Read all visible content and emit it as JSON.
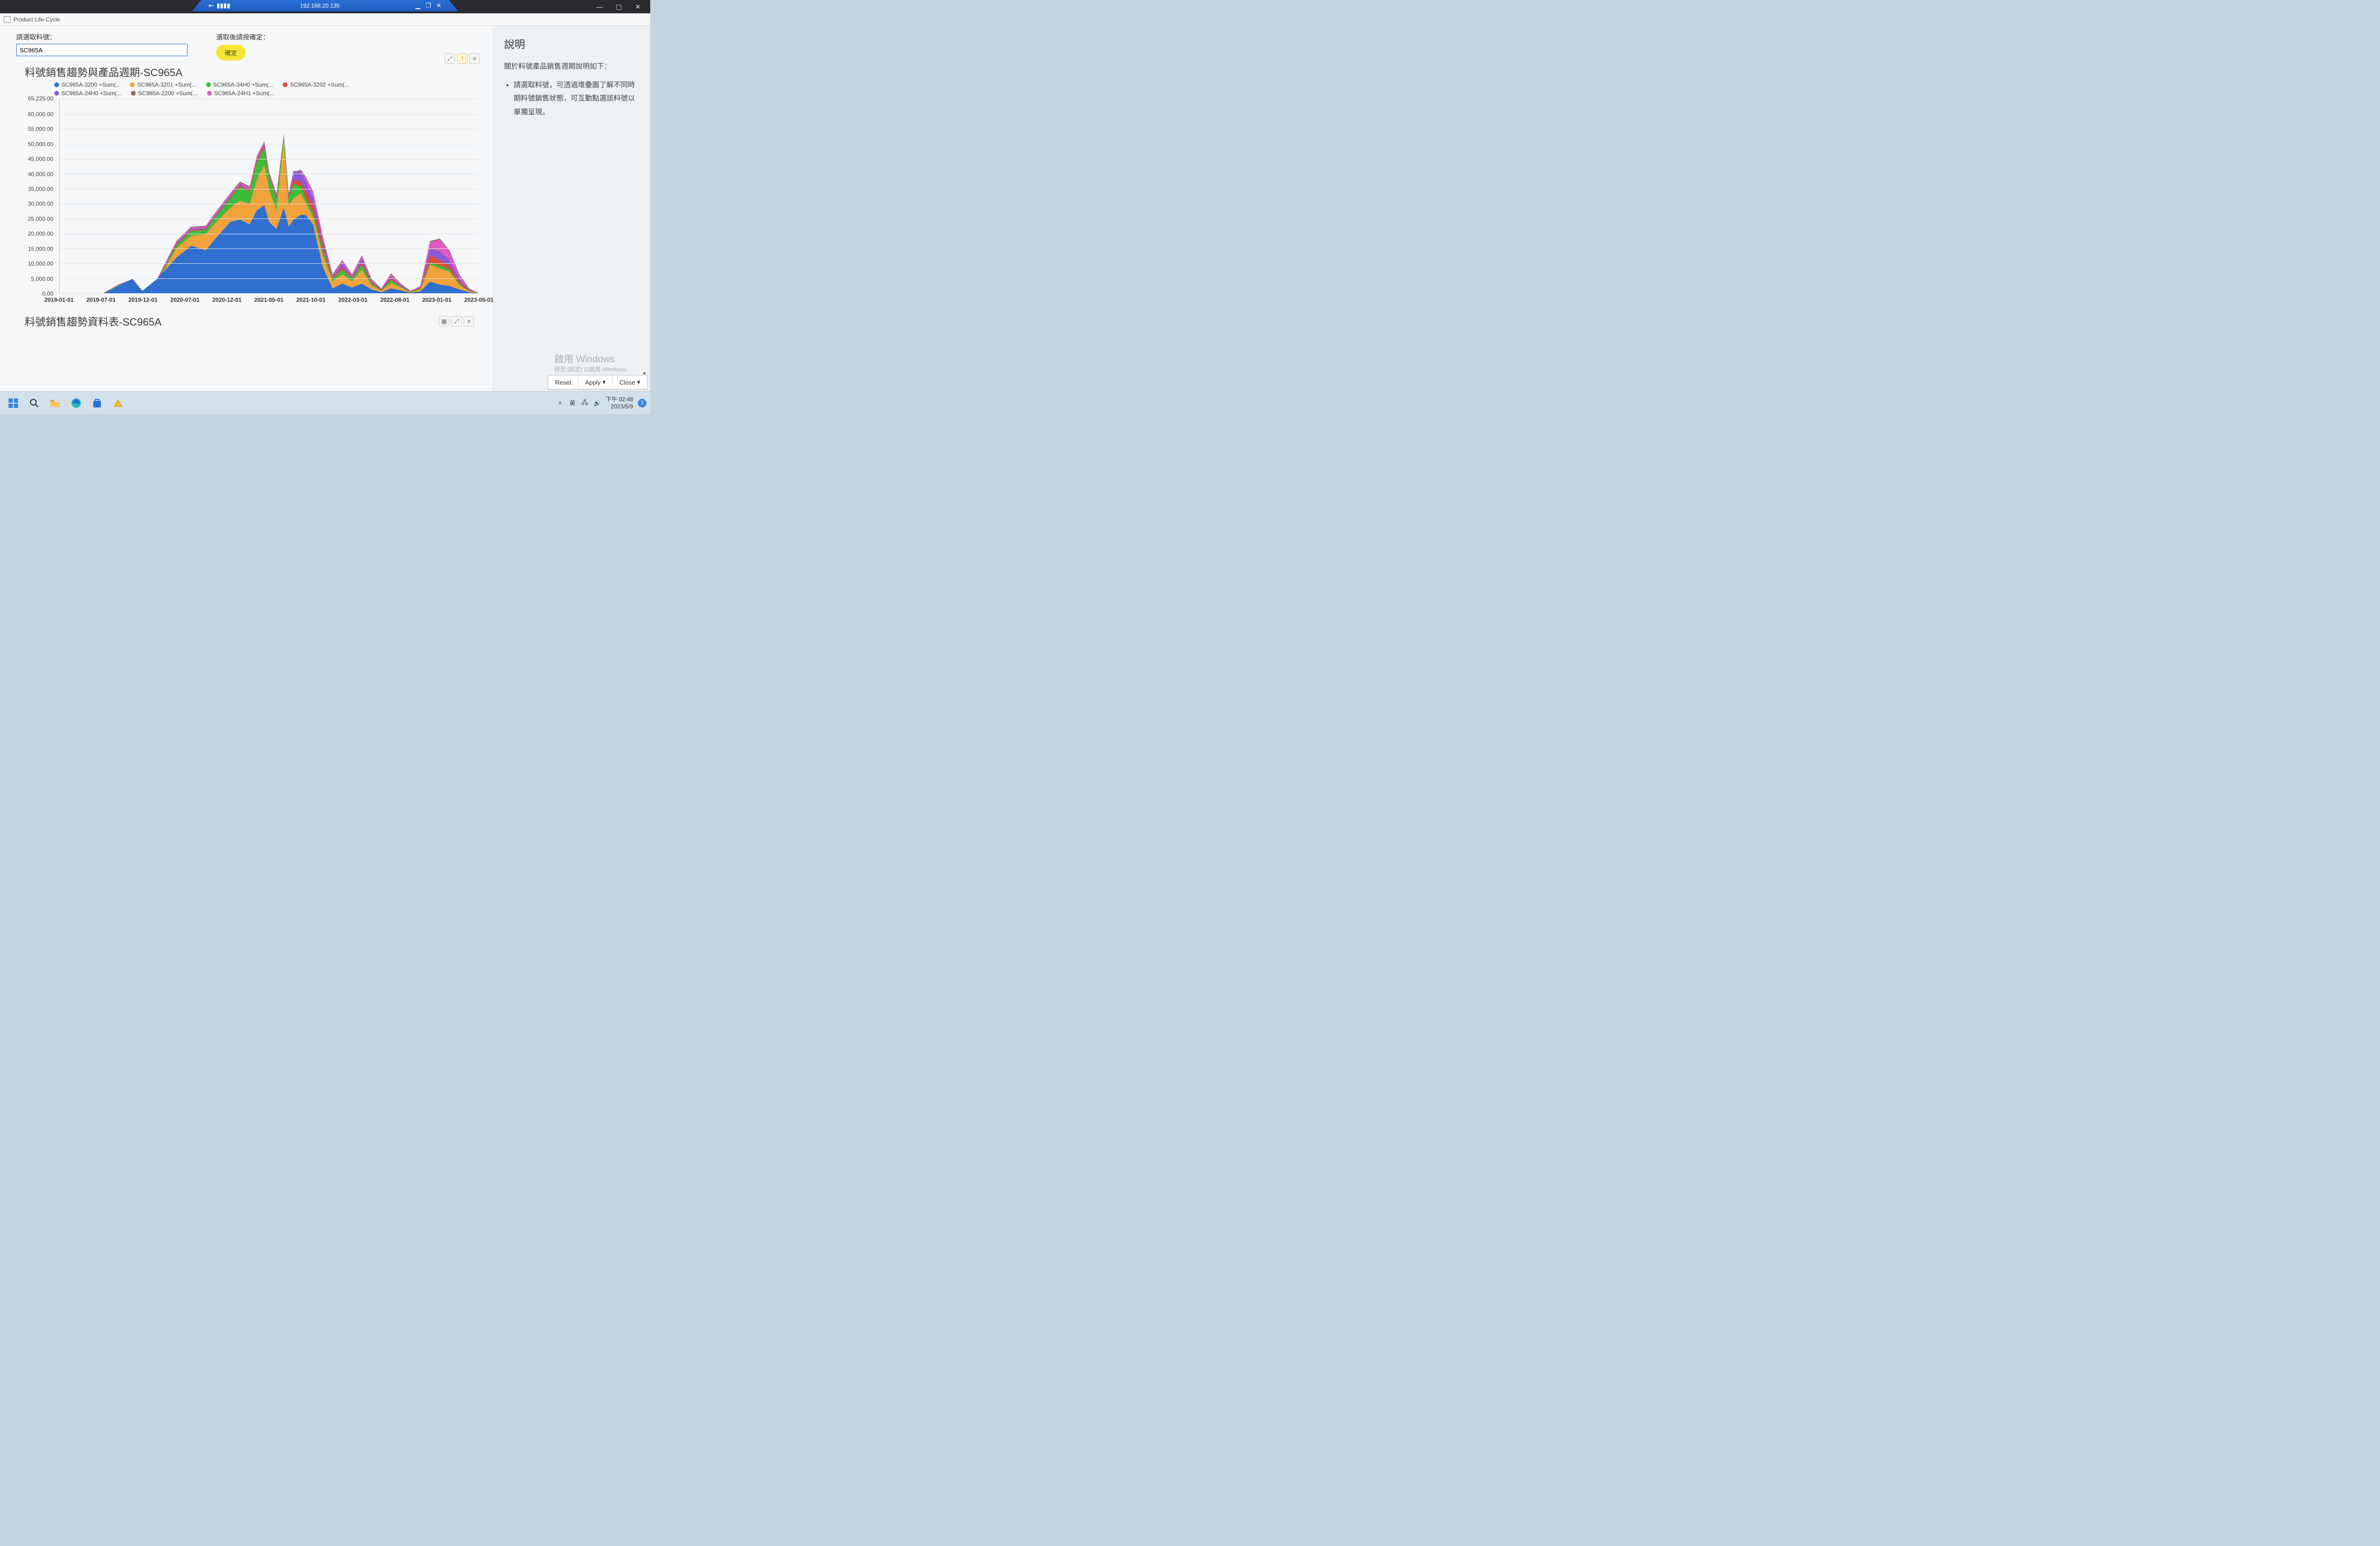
{
  "outer_window": {
    "minimize": "—",
    "maximize": "▢",
    "close": "✕"
  },
  "rdp": {
    "pin": "⇤",
    "signal": "▮▮▮▮",
    "host": "192.168.20.135",
    "min": "▁",
    "restore": "❐",
    "close": "✕"
  },
  "app": {
    "title": "Product Life-Cycle",
    "input_label": "請選取料號：",
    "input_value": "SC965A",
    "confirm_label": "選取後請按確定：",
    "confirm_btn": "確定",
    "chart_title": "料號銷售趨勢與產品週期-SC965A",
    "table_title": "料號銷售趨勢資料表-SC965A",
    "toolbar": {
      "expand": "⤢",
      "alert": "!",
      "menu": "≡",
      "grid": "▦"
    }
  },
  "legend": [
    {
      "label": "SC965A-3200 +Sum(...",
      "color": "#2f6fd0"
    },
    {
      "label": "SC965A-3201 +Sum(...",
      "color": "#f0a23c"
    },
    {
      "label": "SC965A-34H0 +Sum(...",
      "color": "#3bbd3b"
    },
    {
      "label": "SC965A-3202 +Sum(...",
      "color": "#e24a3b"
    },
    {
      "label": "SC965A-24H0 +Sum(...",
      "color": "#8a5bd8"
    },
    {
      "label": "SC965A-2200 +Sum(...",
      "color": "#8a6b5b"
    },
    {
      "label": "SC965A-24H1 +Sum(...",
      "color": "#e05bc0"
    }
  ],
  "chart": {
    "type": "stacked-area",
    "background": "#fafbfc",
    "grid_color": "#e4e4e4",
    "ylim": [
      0,
      65225
    ],
    "yticks": [
      0,
      5000,
      10000,
      15000,
      20000,
      25000,
      30000,
      35000,
      40000,
      45000,
      50000,
      55000,
      60000,
      65225
    ],
    "ytick_labels": [
      "0.00",
      "5,000.00",
      "10,000.00",
      "15,000.00",
      "20,000.00",
      "25,000.00",
      "30,000.00",
      "35,000.00",
      "40,000.00",
      "45,000.00",
      "50,000.00",
      "55,000.00",
      "60,000.00",
      "65,225.00"
    ],
    "xticks": [
      "2019-01-01",
      "2019-07-01",
      "2019-12-01",
      "2020-07-01",
      "2020-12-01",
      "2021-05-01",
      "2021-10-01",
      "2022-03-01",
      "2022-08-01",
      "2023-01-01",
      "2023-05-01"
    ]
  },
  "side": {
    "heading": "說明",
    "intro": "關於料號產品銷售週期說明如下：",
    "bullet": "請選取料號，可透過堆疊圖了解不同時期料號銷售狀態，可互動點選該料號以單獨呈現。"
  },
  "watermark": {
    "l1": "啟用 Windows",
    "l2": "移至 [設定] 以啟用 Windows。"
  },
  "dialog": {
    "reset": "Reset",
    "apply": "Apply",
    "close": "Close"
  },
  "taskbar": {
    "lang": "英",
    "time": "下午 02:48",
    "date": "2023/5/9",
    "notif": "2"
  }
}
